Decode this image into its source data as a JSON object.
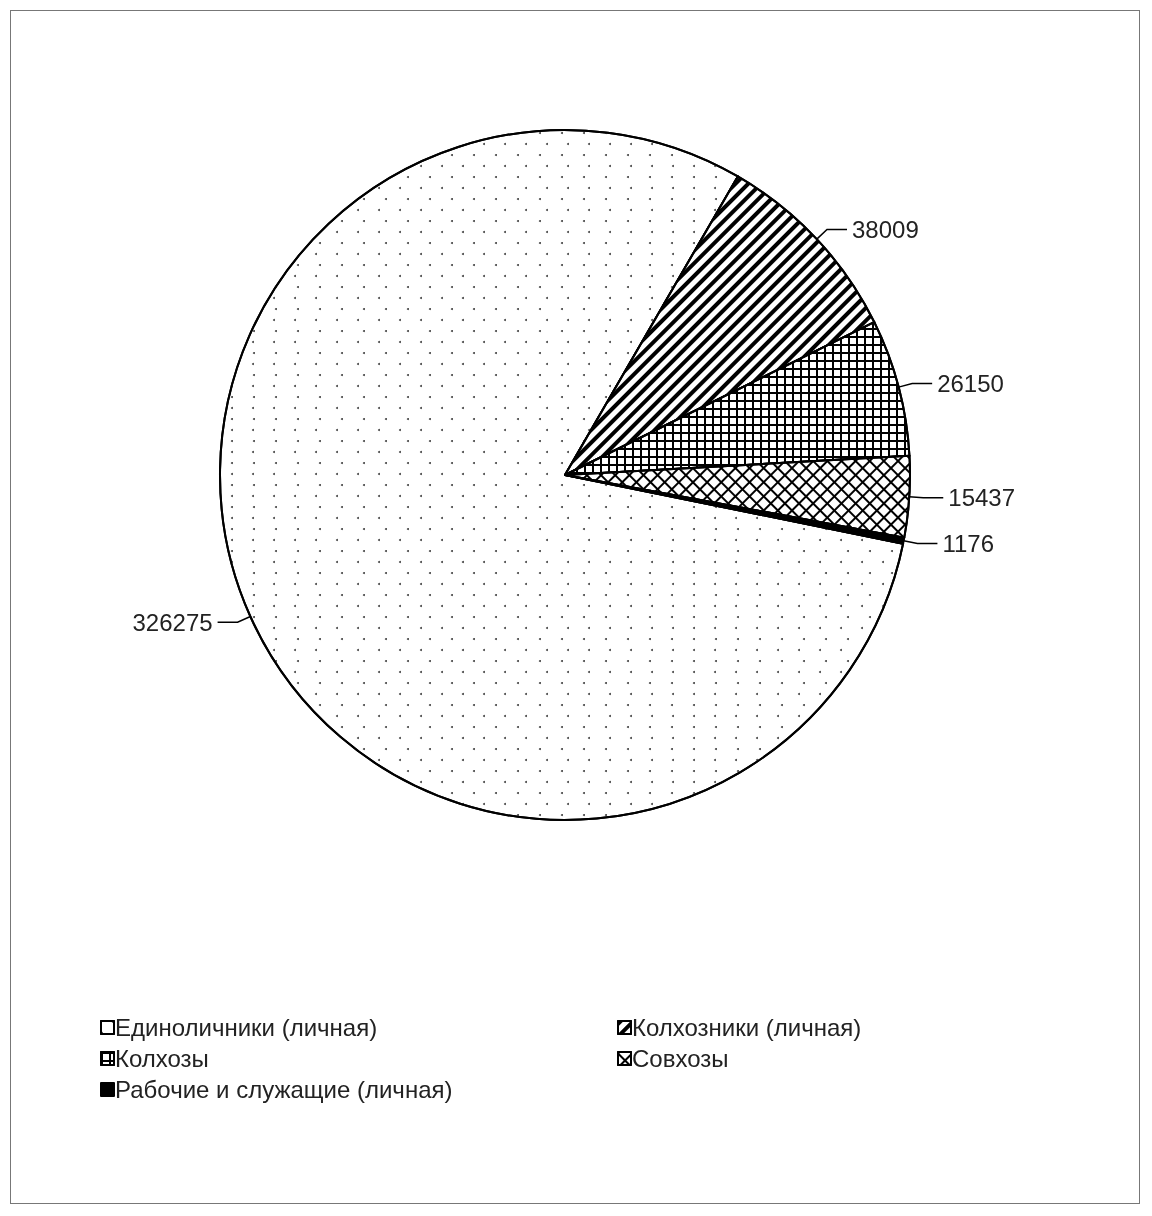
{
  "chart_data": {
    "type": "pie",
    "categories": [
      "Единоличники (личная)",
      "Колхозники (личная)",
      "Колхозы",
      "Совхозы",
      "Рабочие и служащие (личная)"
    ],
    "values": [
      326275,
      38009,
      26150,
      15437,
      1176
    ],
    "colors": [
      "#ffffff",
      "#ffffff",
      "#ffffff",
      "#ffffff",
      "#000000"
    ],
    "data_labels": true,
    "legend": "bottom"
  }
}
